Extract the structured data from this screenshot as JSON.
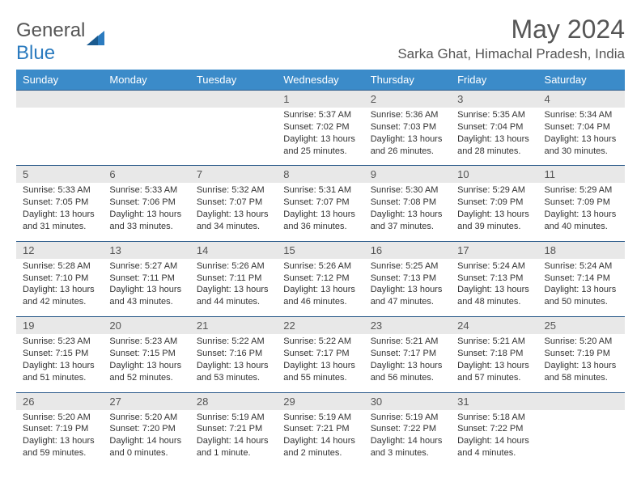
{
  "logo": {
    "g": "General",
    "b": "Blue"
  },
  "title": "May 2024",
  "location": "Sarka Ghat, Himachal Pradesh, India",
  "colors": {
    "header_bg": "#3b8bc9",
    "header_text": "#ffffff",
    "daynum_bg": "#e8e8e8",
    "border": "#2b5a8a",
    "text": "#333333",
    "logo_blue": "#2b7bbf"
  },
  "weekdays": [
    "Sunday",
    "Monday",
    "Tuesday",
    "Wednesday",
    "Thursday",
    "Friday",
    "Saturday"
  ],
  "weeks": [
    {
      "nums": [
        "",
        "",
        "",
        "1",
        "2",
        "3",
        "4"
      ],
      "cells": [
        "",
        "",
        "",
        "Sunrise: 5:37 AM\nSunset: 7:02 PM\nDaylight: 13 hours\nand 25 minutes.",
        "Sunrise: 5:36 AM\nSunset: 7:03 PM\nDaylight: 13 hours\nand 26 minutes.",
        "Sunrise: 5:35 AM\nSunset: 7:04 PM\nDaylight: 13 hours\nand 28 minutes.",
        "Sunrise: 5:34 AM\nSunset: 7:04 PM\nDaylight: 13 hours\nand 30 minutes."
      ]
    },
    {
      "nums": [
        "5",
        "6",
        "7",
        "8",
        "9",
        "10",
        "11"
      ],
      "cells": [
        "Sunrise: 5:33 AM\nSunset: 7:05 PM\nDaylight: 13 hours\nand 31 minutes.",
        "Sunrise: 5:33 AM\nSunset: 7:06 PM\nDaylight: 13 hours\nand 33 minutes.",
        "Sunrise: 5:32 AM\nSunset: 7:07 PM\nDaylight: 13 hours\nand 34 minutes.",
        "Sunrise: 5:31 AM\nSunset: 7:07 PM\nDaylight: 13 hours\nand 36 minutes.",
        "Sunrise: 5:30 AM\nSunset: 7:08 PM\nDaylight: 13 hours\nand 37 minutes.",
        "Sunrise: 5:29 AM\nSunset: 7:09 PM\nDaylight: 13 hours\nand 39 minutes.",
        "Sunrise: 5:29 AM\nSunset: 7:09 PM\nDaylight: 13 hours\nand 40 minutes."
      ]
    },
    {
      "nums": [
        "12",
        "13",
        "14",
        "15",
        "16",
        "17",
        "18"
      ],
      "cells": [
        "Sunrise: 5:28 AM\nSunset: 7:10 PM\nDaylight: 13 hours\nand 42 minutes.",
        "Sunrise: 5:27 AM\nSunset: 7:11 PM\nDaylight: 13 hours\nand 43 minutes.",
        "Sunrise: 5:26 AM\nSunset: 7:11 PM\nDaylight: 13 hours\nand 44 minutes.",
        "Sunrise: 5:26 AM\nSunset: 7:12 PM\nDaylight: 13 hours\nand 46 minutes.",
        "Sunrise: 5:25 AM\nSunset: 7:13 PM\nDaylight: 13 hours\nand 47 minutes.",
        "Sunrise: 5:24 AM\nSunset: 7:13 PM\nDaylight: 13 hours\nand 48 minutes.",
        "Sunrise: 5:24 AM\nSunset: 7:14 PM\nDaylight: 13 hours\nand 50 minutes."
      ]
    },
    {
      "nums": [
        "19",
        "20",
        "21",
        "22",
        "23",
        "24",
        "25"
      ],
      "cells": [
        "Sunrise: 5:23 AM\nSunset: 7:15 PM\nDaylight: 13 hours\nand 51 minutes.",
        "Sunrise: 5:23 AM\nSunset: 7:15 PM\nDaylight: 13 hours\nand 52 minutes.",
        "Sunrise: 5:22 AM\nSunset: 7:16 PM\nDaylight: 13 hours\nand 53 minutes.",
        "Sunrise: 5:22 AM\nSunset: 7:17 PM\nDaylight: 13 hours\nand 55 minutes.",
        "Sunrise: 5:21 AM\nSunset: 7:17 PM\nDaylight: 13 hours\nand 56 minutes.",
        "Sunrise: 5:21 AM\nSunset: 7:18 PM\nDaylight: 13 hours\nand 57 minutes.",
        "Sunrise: 5:20 AM\nSunset: 7:19 PM\nDaylight: 13 hours\nand 58 minutes."
      ]
    },
    {
      "nums": [
        "26",
        "27",
        "28",
        "29",
        "30",
        "31",
        ""
      ],
      "cells": [
        "Sunrise: 5:20 AM\nSunset: 7:19 PM\nDaylight: 13 hours\nand 59 minutes.",
        "Sunrise: 5:20 AM\nSunset: 7:20 PM\nDaylight: 14 hours\nand 0 minutes.",
        "Sunrise: 5:19 AM\nSunset: 7:21 PM\nDaylight: 14 hours\nand 1 minute.",
        "Sunrise: 5:19 AM\nSunset: 7:21 PM\nDaylight: 14 hours\nand 2 minutes.",
        "Sunrise: 5:19 AM\nSunset: 7:22 PM\nDaylight: 14 hours\nand 3 minutes.",
        "Sunrise: 5:18 AM\nSunset: 7:22 PM\nDaylight: 14 hours\nand 4 minutes.",
        ""
      ]
    }
  ]
}
